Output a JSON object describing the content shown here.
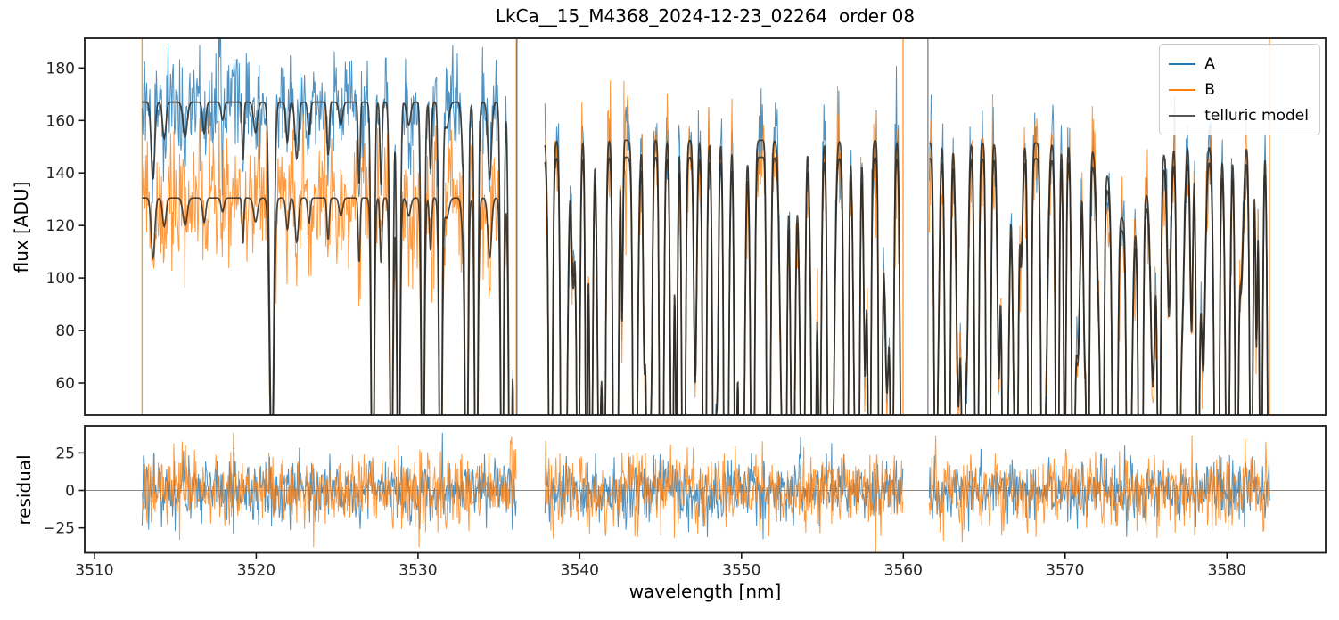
{
  "chart_data": {
    "type": "line",
    "title": "LkCa__15_M4368_2024-12-23_02264  order 08",
    "xlabel": "wavelength [nm]",
    "ylabel_top": "flux [ADU]",
    "ylabel_bottom": "residual",
    "xlim": [
      3509.4,
      3586.1
    ],
    "ylim_top": [
      47.8,
      191.3
    ],
    "ylim_bottom": [
      -41.5,
      43.0
    ],
    "xticks": [
      3510,
      3520,
      3530,
      3540,
      3550,
      3560,
      3570,
      3580
    ],
    "yticks_top": [
      60,
      80,
      100,
      120,
      140,
      160,
      180
    ],
    "yticks_bottom": [
      -25,
      0,
      25
    ],
    "grid": false,
    "legend_position": "upper right",
    "legend": {
      "items": [
        {
          "label": "A",
          "color": "#1f77b4"
        },
        {
          "label": "B",
          "color": "#ff7f0e"
        },
        {
          "label": "telluric model",
          "color": "#555555"
        }
      ]
    },
    "colors": {
      "A": "#1f77b4",
      "B": "#ff7f0e",
      "telluric": "#2e2a24",
      "spine": "#1a1a1a",
      "tick_text": "#262626",
      "zero_line": "#8a8a8a",
      "gap_line": "#666666"
    },
    "seed": 42,
    "segments": [
      {
        "range": [
          3512.95,
          3536.1
        ],
        "A_level": 167.0,
        "B_level": 130.5,
        "spacing": [
          0.55,
          1.4
        ],
        "depth": [
          0.04,
          0.2
        ],
        "deep_prob": 0.03
      },
      {
        "range": [
          3537.85,
          3560.0
        ],
        "A_level": 152.5,
        "B_level": 146.0,
        "spacing": [
          0.4,
          1.0
        ],
        "depth": [
          0.25,
          0.75
        ],
        "deep_prob": 0.38
      },
      {
        "range": [
          3561.6,
          3582.65
        ],
        "A_level": 151.5,
        "B_level": 145.5,
        "spacing": [
          0.4,
          1.0
        ],
        "depth": [
          0.25,
          0.75
        ],
        "deep_prob": 0.38,
        "broad_dip": {
          "center": 3574.0,
          "sigma": 1.0,
          "depth": 0.21
        }
      }
    ],
    "deep_lines": [
      3527.2,
      3528.8,
      3530.3,
      3531.4,
      3533.0,
      3533.6,
      3535.2,
      3535.7,
      3536.0,
      3538.2,
      3538.9,
      3539.9,
      3540.7,
      3541.5,
      3542.3,
      3543.4,
      3544.2,
      3545.1,
      3545.7,
      3546.4,
      3547.7,
      3548.3,
      3549.0,
      3549.9,
      3550.7,
      3551.7,
      3552.7,
      3553.8,
      3554.5,
      3555.4,
      3556.5,
      3557.2,
      3557.9,
      3558.6,
      3559.3,
      3559.9,
      3562.0,
      3562.8,
      3563.7,
      3564.5,
      3565.3,
      3566.2,
      3567.0,
      3567.8,
      3568.6,
      3569.5,
      3570.5,
      3571.4,
      3572.3,
      3573.1,
      3573.9,
      3574.7,
      3575.8,
      3577.0,
      3578.2,
      3579.4,
      3580.6,
      3581.5,
      3582.1,
      3582.6
    ],
    "gap_lines": [
      3536.12,
      3561.52
    ],
    "edge_lines": [
      3512.95,
      3536.08,
      3559.98,
      3582.63
    ],
    "noise": {
      "A_sigma": 10.0,
      "B_sigma": 13.0,
      "residual_A_sigma": 10.0,
      "residual_B_sigma": 12.5
    }
  }
}
